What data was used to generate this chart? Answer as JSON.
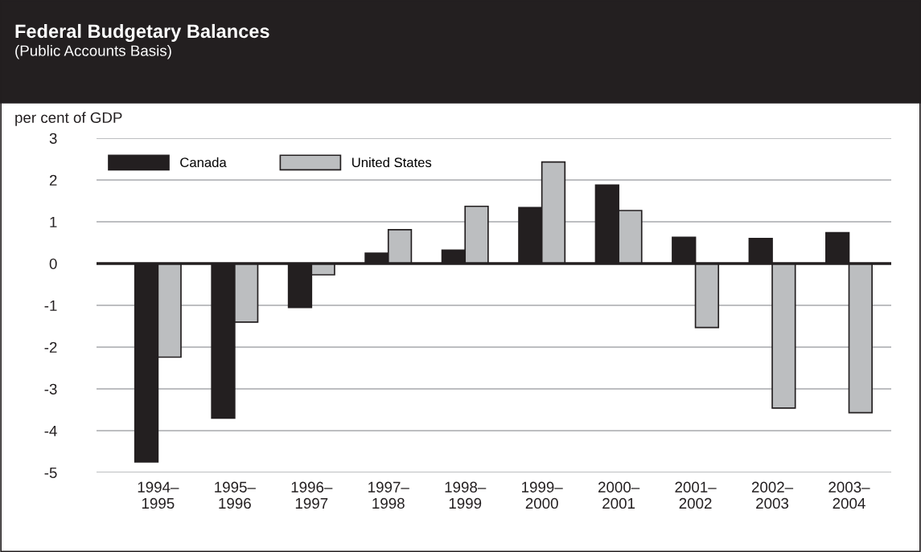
{
  "chart_data": {
    "type": "bar",
    "title": "Federal Budgetary Balances",
    "subtitle": "(Public Accounts Basis)",
    "ylabel": "per cent of GDP",
    "categories": [
      "1994–\n1995",
      "1995–\n1996",
      "1996–\n1997",
      "1997–\n1998",
      "1998–\n1999",
      "1999–\n2000",
      "2000–\n2001",
      "2001–\n2002",
      "2002–\n2003",
      "2003–\n2004"
    ],
    "series": [
      {
        "name": "Canada",
        "color": "#231f20",
        "values": [
          -4.75,
          -3.7,
          -1.05,
          0.25,
          0.32,
          1.34,
          1.88,
          0.63,
          0.6,
          0.74
        ]
      },
      {
        "name": "United States",
        "color": "#bcbec0",
        "values": [
          -2.24,
          -1.4,
          -0.27,
          0.81,
          1.37,
          2.43,
          1.27,
          -1.53,
          -3.46,
          -3.57
        ]
      }
    ],
    "ylim": [
      -5,
      3
    ],
    "yticks": [
      -5,
      -4,
      -3,
      -2,
      -1,
      0,
      1,
      2,
      3
    ],
    "grid": "y",
    "legend": "top left",
    "ref_lines": [
      {
        "axis": "y",
        "value": 0,
        "color": "#231f20"
      }
    ]
  }
}
